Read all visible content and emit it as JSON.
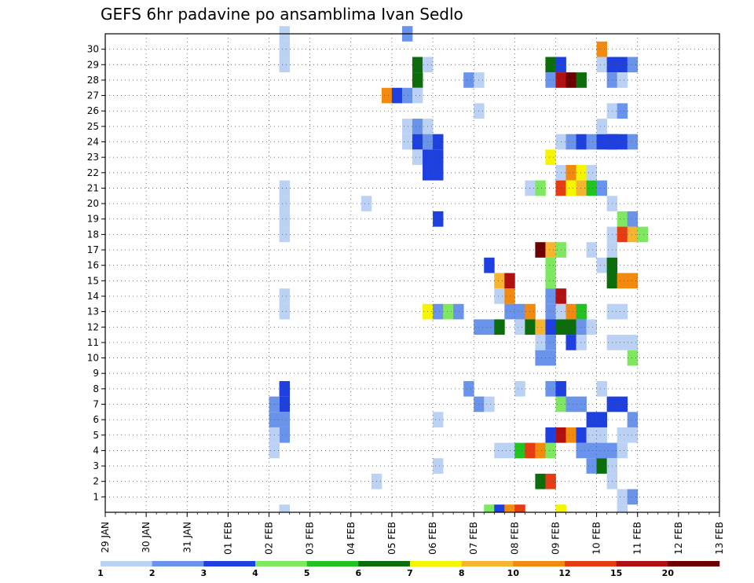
{
  "chart_data": {
    "type": "heatmap",
    "title": "GEFS 6hr padavine po ansamblima Ivan Sedlo",
    "x_tick_labels": [
      "29 JAN",
      "30 JAN",
      "31 JAN",
      "01 FEB",
      "02 FEB",
      "03 FEB",
      "04 FEB",
      "05 FEB",
      "06 FEB",
      "07 FEB",
      "08 FEB",
      "09 FEB",
      "10 FEB",
      "11 FEB",
      "12 FEB",
      "13 FEB"
    ],
    "y_tick_labels": [
      "1",
      "2",
      "3",
      "4",
      "5",
      "6",
      "7",
      "8",
      "9",
      "10",
      "11",
      "12",
      "13",
      "14",
      "15",
      "16",
      "17",
      "18",
      "19",
      "20",
      "21",
      "22",
      "23",
      "24",
      "25",
      "26",
      "27",
      "28",
      "29",
      "30"
    ],
    "x_steps_per_day": 4,
    "ylim": [
      0,
      30
    ],
    "grid": true,
    "legend_placement": "bottom",
    "legend_labels": [
      "1",
      "2",
      "3",
      "4",
      "5",
      "6",
      "7",
      "8",
      "10",
      "12",
      "15",
      "20"
    ],
    "legend_colors": [
      "#bcd2f5",
      "#6a94ec",
      "#1e40e0",
      "#7de860",
      "#22c222",
      "#0b6e0b",
      "#f5f500",
      "#f5b530",
      "#f28a10",
      "#e63c14",
      "#b01010",
      "#6a0000"
    ],
    "cells": [
      {
        "x": 17,
        "y": 30,
        "c": 0
      },
      {
        "x": 17,
        "y": 29,
        "c": 0
      },
      {
        "x": 17,
        "y": 28,
        "c": 0
      },
      {
        "x": 17,
        "y": 20,
        "c": 0
      },
      {
        "x": 17,
        "y": 19,
        "c": 0
      },
      {
        "x": 17,
        "y": 18,
        "c": 0
      },
      {
        "x": 17,
        "y": 17,
        "c": 0
      },
      {
        "x": 17,
        "y": 13,
        "c": 0
      },
      {
        "x": 17,
        "y": 12,
        "c": 0
      },
      {
        "x": 17,
        "y": 7,
        "c": 2
      },
      {
        "x": 17,
        "y": 6,
        "c": 2
      },
      {
        "x": 16,
        "y": 6,
        "c": 1
      },
      {
        "x": 16,
        "y": 5,
        "c": 1
      },
      {
        "x": 17,
        "y": 5,
        "c": 1
      },
      {
        "x": 17,
        "y": 4,
        "c": 1
      },
      {
        "x": 16,
        "y": 4,
        "c": 0
      },
      {
        "x": 16,
        "y": 3,
        "c": 0
      },
      {
        "x": 17,
        "y": -1,
        "c": 0
      },
      {
        "x": 29,
        "y": 30,
        "c": 1
      },
      {
        "x": 30,
        "y": 28,
        "c": 5
      },
      {
        "x": 30,
        "y": 27,
        "c": 5
      },
      {
        "x": 31,
        "y": 28,
        "c": 0
      },
      {
        "x": 27,
        "y": 26,
        "c": 8
      },
      {
        "x": 28,
        "y": 26,
        "c": 2
      },
      {
        "x": 29,
        "y": 26,
        "c": 1
      },
      {
        "x": 30,
        "y": 26,
        "c": 0
      },
      {
        "x": 29,
        "y": 24,
        "c": 0
      },
      {
        "x": 30,
        "y": 24,
        "c": 1
      },
      {
        "x": 31,
        "y": 24,
        "c": 0
      },
      {
        "x": 29,
        "y": 23,
        "c": 0
      },
      {
        "x": 30,
        "y": 23,
        "c": 2
      },
      {
        "x": 31,
        "y": 23,
        "c": 1
      },
      {
        "x": 32,
        "y": 23,
        "c": 2
      },
      {
        "x": 30,
        "y": 22,
        "c": 0
      },
      {
        "x": 31,
        "y": 22,
        "c": 2
      },
      {
        "x": 32,
        "y": 22,
        "c": 2
      },
      {
        "x": 31,
        "y": 21,
        "c": 2
      },
      {
        "x": 32,
        "y": 21,
        "c": 2
      },
      {
        "x": 25,
        "y": 19,
        "c": 0
      },
      {
        "x": 32,
        "y": 18,
        "c": 2
      },
      {
        "x": 26,
        "y": 1,
        "c": 0
      },
      {
        "x": 31,
        "y": 12,
        "c": 6
      },
      {
        "x": 32,
        "y": 12,
        "c": 1
      },
      {
        "x": 33,
        "y": 12,
        "c": 3
      },
      {
        "x": 34,
        "y": 12,
        "c": 1
      },
      {
        "x": 32,
        "y": 5,
        "c": 0
      },
      {
        "x": 32,
        "y": 2,
        "c": 0
      },
      {
        "x": 35,
        "y": 27,
        "c": 1
      },
      {
        "x": 36,
        "y": 27,
        "c": 0
      },
      {
        "x": 36,
        "y": 25,
        "c": 0
      },
      {
        "x": 35,
        "y": 7,
        "c": 1
      },
      {
        "x": 36,
        "y": 6,
        "c": 1
      },
      {
        "x": 37,
        "y": 6,
        "c": 0
      },
      {
        "x": 36,
        "y": 11,
        "c": 1
      },
      {
        "x": 37,
        "y": 11,
        "c": 1
      },
      {
        "x": 38,
        "y": 11,
        "c": 5
      },
      {
        "x": 37,
        "y": 15,
        "c": 2
      },
      {
        "x": 38,
        "y": 14,
        "c": 7
      },
      {
        "x": 39,
        "y": 14,
        "c": 10
      },
      {
        "x": 38,
        "y": 13,
        "c": 0
      },
      {
        "x": 39,
        "y": 13,
        "c": 8
      },
      {
        "x": 39,
        "y": 12,
        "c": 1
      },
      {
        "x": 40,
        "y": 12,
        "c": 1
      },
      {
        "x": 41,
        "y": 12,
        "c": 8
      },
      {
        "x": 40,
        "y": 11,
        "c": 0
      },
      {
        "x": 41,
        "y": 11,
        "c": 5
      },
      {
        "x": 42,
        "y": 11,
        "c": 7
      },
      {
        "x": 40,
        "y": 7,
        "c": 0
      },
      {
        "x": 38,
        "y": 3,
        "c": 0
      },
      {
        "x": 39,
        "y": 3,
        "c": 0
      },
      {
        "x": 40,
        "y": 3,
        "c": 4
      },
      {
        "x": 41,
        "y": 3,
        "c": 9
      },
      {
        "x": 42,
        "y": 3,
        "c": 8
      },
      {
        "x": 43,
        "y": 3,
        "c": 3
      },
      {
        "x": 37,
        "y": -1,
        "c": 3
      },
      {
        "x": 38,
        "y": -1,
        "c": 2
      },
      {
        "x": 39,
        "y": -1,
        "c": 8
      },
      {
        "x": 40,
        "y": -1,
        "c": 9
      },
      {
        "x": 41,
        "y": 20,
        "c": 0
      },
      {
        "x": 42,
        "y": 20,
        "c": 3
      },
      {
        "x": 42,
        "y": 16,
        "c": 11
      },
      {
        "x": 43,
        "y": 16,
        "c": 7
      },
      {
        "x": 44,
        "y": 16,
        "c": 3
      },
      {
        "x": 43,
        "y": 15,
        "c": 3
      },
      {
        "x": 43,
        "y": 14,
        "c": 3
      },
      {
        "x": 43,
        "y": 13,
        "c": 1
      },
      {
        "x": 44,
        "y": 13,
        "c": 10
      },
      {
        "x": 43,
        "y": 12,
        "c": 1
      },
      {
        "x": 44,
        "y": 12,
        "c": 0
      },
      {
        "x": 45,
        "y": 12,
        "c": 8
      },
      {
        "x": 46,
        "y": 12,
        "c": 4
      },
      {
        "x": 43,
        "y": 11,
        "c": 2
      },
      {
        "x": 44,
        "y": 11,
        "c": 5
      },
      {
        "x": 45,
        "y": 11,
        "c": 5
      },
      {
        "x": 46,
        "y": 11,
        "c": 1
      },
      {
        "x": 47,
        "y": 11,
        "c": 0
      },
      {
        "x": 42,
        "y": 10,
        "c": 0
      },
      {
        "x": 43,
        "y": 10,
        "c": 1
      },
      {
        "x": 42,
        "y": 9,
        "c": 1
      },
      {
        "x": 43,
        "y": 9,
        "c": 1
      },
      {
        "x": 45,
        "y": 10,
        "c": 2
      },
      {
        "x": 46,
        "y": 10,
        "c": 0
      },
      {
        "x": 43,
        "y": 7,
        "c": 1
      },
      {
        "x": 44,
        "y": 7,
        "c": 2
      },
      {
        "x": 44,
        "y": 6,
        "c": 3
      },
      {
        "x": 45,
        "y": 6,
        "c": 1
      },
      {
        "x": 46,
        "y": 6,
        "c": 1
      },
      {
        "x": 43,
        "y": 4,
        "c": 2
      },
      {
        "x": 44,
        "y": 4,
        "c": 10
      },
      {
        "x": 45,
        "y": 4,
        "c": 8
      },
      {
        "x": 46,
        "y": 4,
        "c": 2
      },
      {
        "x": 47,
        "y": 4,
        "c": 0
      },
      {
        "x": 48,
        "y": 4,
        "c": 0
      },
      {
        "x": 46,
        "y": 3,
        "c": 1
      },
      {
        "x": 47,
        "y": 3,
        "c": 1
      },
      {
        "x": 48,
        "y": 3,
        "c": 1
      },
      {
        "x": 49,
        "y": 3,
        "c": 1
      },
      {
        "x": 50,
        "y": 3,
        "c": 0
      },
      {
        "x": 42,
        "y": 1,
        "c": 5
      },
      {
        "x": 43,
        "y": 1,
        "c": 9
      },
      {
        "x": 44,
        "y": -1,
        "c": 6
      },
      {
        "x": 43,
        "y": 28,
        "c": 5
      },
      {
        "x": 44,
        "y": 28,
        "c": 2
      },
      {
        "x": 43,
        "y": 27,
        "c": 1
      },
      {
        "x": 44,
        "y": 27,
        "c": 10
      },
      {
        "x": 45,
        "y": 27,
        "c": 11
      },
      {
        "x": 46,
        "y": 27,
        "c": 5
      },
      {
        "x": 44,
        "y": 23,
        "c": 0
      },
      {
        "x": 45,
        "y": 23,
        "c": 1
      },
      {
        "x": 46,
        "y": 23,
        "c": 2
      },
      {
        "x": 47,
        "y": 23,
        "c": 1
      },
      {
        "x": 48,
        "y": 23,
        "c": 2
      },
      {
        "x": 49,
        "y": 23,
        "c": 2
      },
      {
        "x": 43,
        "y": 22,
        "c": 6
      },
      {
        "x": 44,
        "y": 21,
        "c": 0
      },
      {
        "x": 45,
        "y": 21,
        "c": 8
      },
      {
        "x": 46,
        "y": 21,
        "c": 6
      },
      {
        "x": 47,
        "y": 21,
        "c": 0
      },
      {
        "x": 44,
        "y": 20,
        "c": 9
      },
      {
        "x": 45,
        "y": 20,
        "c": 6
      },
      {
        "x": 46,
        "y": 20,
        "c": 7
      },
      {
        "x": 47,
        "y": 20,
        "c": 4
      },
      {
        "x": 48,
        "y": 20,
        "c": 1
      },
      {
        "x": 47,
        "y": 16,
        "c": 0
      },
      {
        "x": 49,
        "y": 16,
        "c": 0
      },
      {
        "x": 48,
        "y": 15,
        "c": 0
      },
      {
        "x": 49,
        "y": 15,
        "c": 5
      },
      {
        "x": 49,
        "y": 14,
        "c": 5
      },
      {
        "x": 50,
        "y": 14,
        "c": 8
      },
      {
        "x": 51,
        "y": 14,
        "c": 8
      },
      {
        "x": 49,
        "y": 12,
        "c": 0
      },
      {
        "x": 50,
        "y": 12,
        "c": 0
      },
      {
        "x": 47,
        "y": 5,
        "c": 2
      },
      {
        "x": 48,
        "y": 5,
        "c": 2
      },
      {
        "x": 49,
        "y": 6,
        "c": 2
      },
      {
        "x": 50,
        "y": 6,
        "c": 2
      },
      {
        "x": 48,
        "y": 7,
        "c": 0
      },
      {
        "x": 47,
        "y": 2,
        "c": 1
      },
      {
        "x": 48,
        "y": 2,
        "c": 5
      },
      {
        "x": 49,
        "y": 2,
        "c": 0
      },
      {
        "x": 49,
        "y": 1,
        "c": 0
      },
      {
        "x": 50,
        "y": 0,
        "c": 0
      },
      {
        "x": 48,
        "y": 29,
        "c": 8
      },
      {
        "x": 48,
        "y": 28,
        "c": 0
      },
      {
        "x": 49,
        "y": 28,
        "c": 2
      },
      {
        "x": 50,
        "y": 28,
        "c": 2
      },
      {
        "x": 51,
        "y": 28,
        "c": 1
      },
      {
        "x": 49,
        "y": 27,
        "c": 1
      },
      {
        "x": 50,
        "y": 27,
        "c": 0
      },
      {
        "x": 49,
        "y": 25,
        "c": 0
      },
      {
        "x": 50,
        "y": 25,
        "c": 1
      },
      {
        "x": 48,
        "y": 24,
        "c": 0
      },
      {
        "x": 49,
        "y": 23,
        "c": 2
      },
      {
        "x": 50,
        "y": 23,
        "c": 2
      },
      {
        "x": 51,
        "y": 23,
        "c": 1
      },
      {
        "x": 49,
        "y": 19,
        "c": 0
      },
      {
        "x": 50,
        "y": 18,
        "c": 3
      },
      {
        "x": 51,
        "y": 18,
        "c": 1
      },
      {
        "x": 49,
        "y": 17,
        "c": 0
      },
      {
        "x": 50,
        "y": 17,
        "c": 9
      },
      {
        "x": 51,
        "y": 17,
        "c": 7
      },
      {
        "x": 52,
        "y": 17,
        "c": 3
      },
      {
        "x": 49,
        "y": 10,
        "c": 0
      },
      {
        "x": 50,
        "y": 10,
        "c": 0
      },
      {
        "x": 51,
        "y": 9,
        "c": 3
      },
      {
        "x": 51,
        "y": 10,
        "c": 0
      },
      {
        "x": 51,
        "y": 5,
        "c": 1
      },
      {
        "x": 50,
        "y": 4,
        "c": 0
      },
      {
        "x": 51,
        "y": 4,
        "c": 0
      },
      {
        "x": 51,
        "y": 0,
        "c": 1
      },
      {
        "x": 50,
        "y": -1,
        "c": 0
      }
    ]
  }
}
